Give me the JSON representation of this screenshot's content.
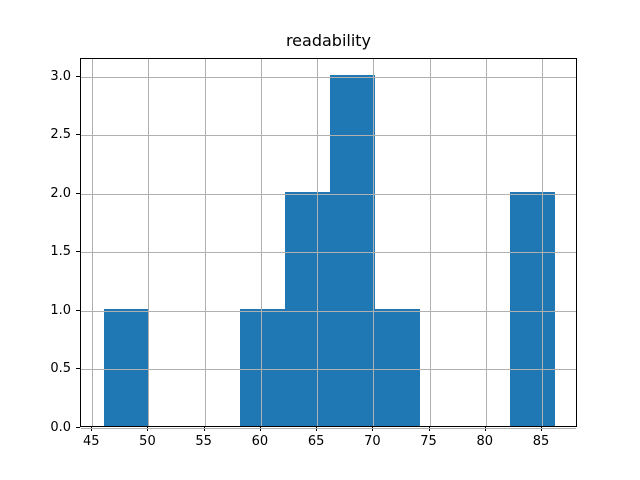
{
  "figure": {
    "background": "#ffffff"
  },
  "chart_data": {
    "type": "bar",
    "subtype": "histogram",
    "title": "readability",
    "xlabel": "",
    "ylabel": "",
    "bin_edges": [
      46.05,
      50.07,
      54.08,
      58.1,
      62.11,
      66.13,
      70.14,
      74.16,
      78.17,
      82.19,
      86.2
    ],
    "counts": [
      1,
      0,
      0,
      1,
      2,
      3,
      1,
      0,
      0,
      2
    ],
    "xticks": [
      45,
      50,
      55,
      60,
      65,
      70,
      75,
      80,
      85
    ],
    "yticks": [
      0.0,
      0.5,
      1.0,
      1.5,
      2.0,
      2.5,
      3.0
    ],
    "xlim": [
      44.0,
      88.2
    ],
    "ylim": [
      0,
      3.15
    ],
    "grid": true,
    "grid_on_top_of_bars": true,
    "legend": "none",
    "bar_color": "#1f77b4",
    "grid_color": "#b0b0b0",
    "axis_color": "#000000",
    "text_color": "#000000"
  }
}
